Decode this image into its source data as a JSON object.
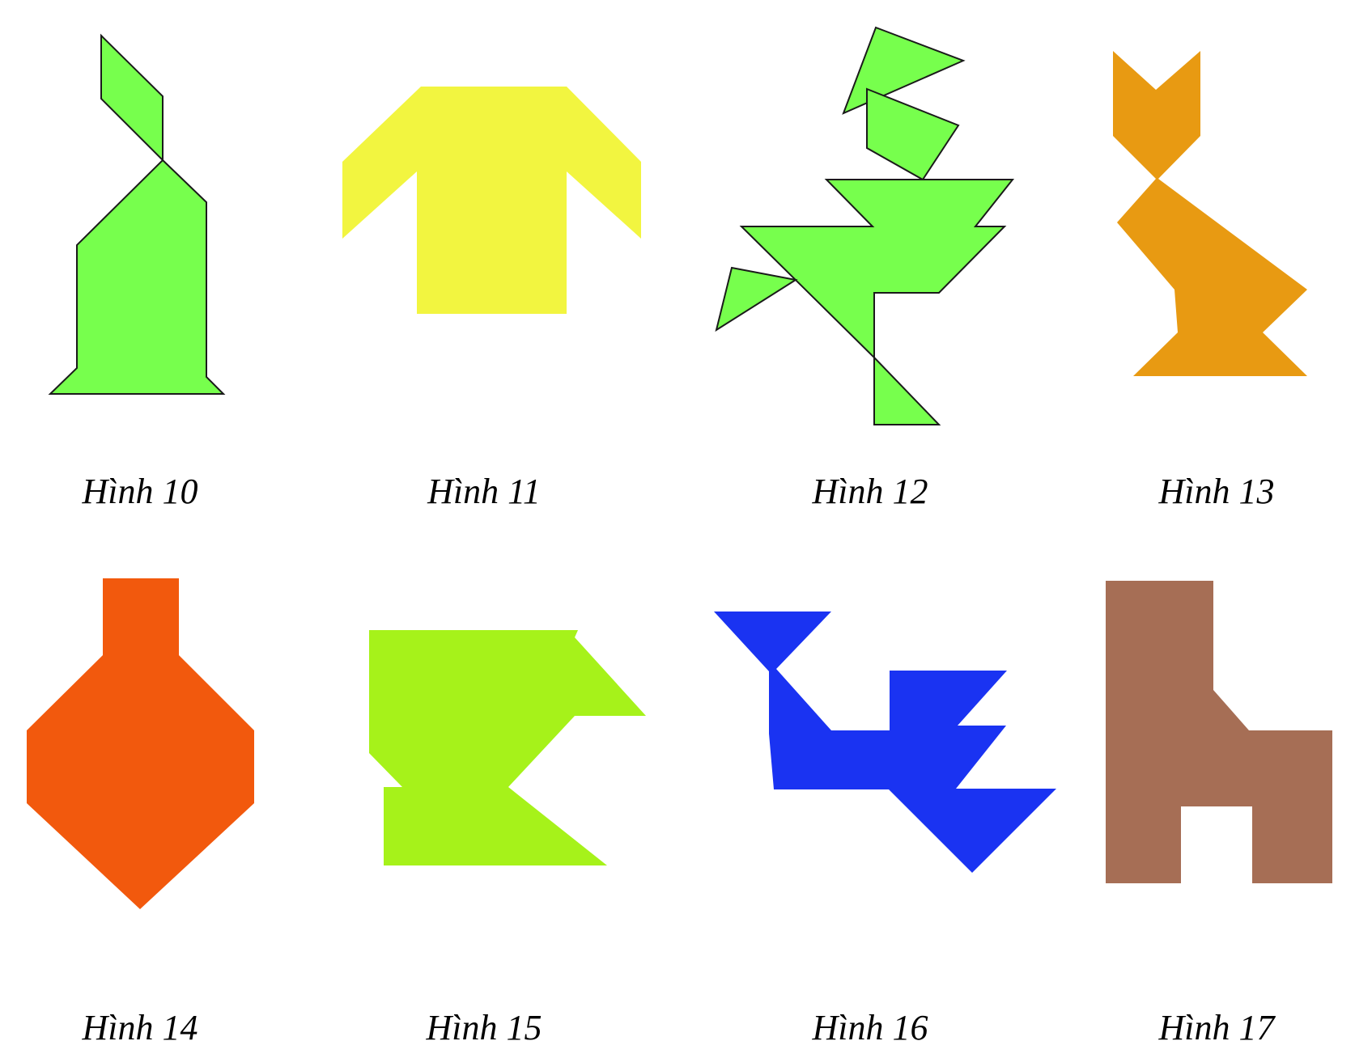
{
  "figures": [
    {
      "caption": "Hình 10",
      "shape": "rabbit",
      "color": "#77FF4D",
      "outlined": true
    },
    {
      "caption": "Hình 11",
      "shape": "shirt",
      "color": "#F2F540",
      "outlined": false
    },
    {
      "caption": "Hình 12",
      "shape": "dancer",
      "color": "#77FF4D",
      "outlined": true
    },
    {
      "caption": "Hình 13",
      "shape": "cat",
      "color": "#E89A12",
      "outlined": false
    },
    {
      "caption": "Hình 14",
      "shape": "vase",
      "color": "#F2590D",
      "outlined": false
    },
    {
      "caption": "Hình 15",
      "shape": "cup",
      "color": "#A6F21A",
      "outlined": false
    },
    {
      "caption": "Hình 16",
      "shape": "bird",
      "color": "#1A33F2",
      "outlined": false
    },
    {
      "caption": "Hình 17",
      "shape": "chair",
      "color": "#A66E55",
      "outlined": false
    }
  ]
}
